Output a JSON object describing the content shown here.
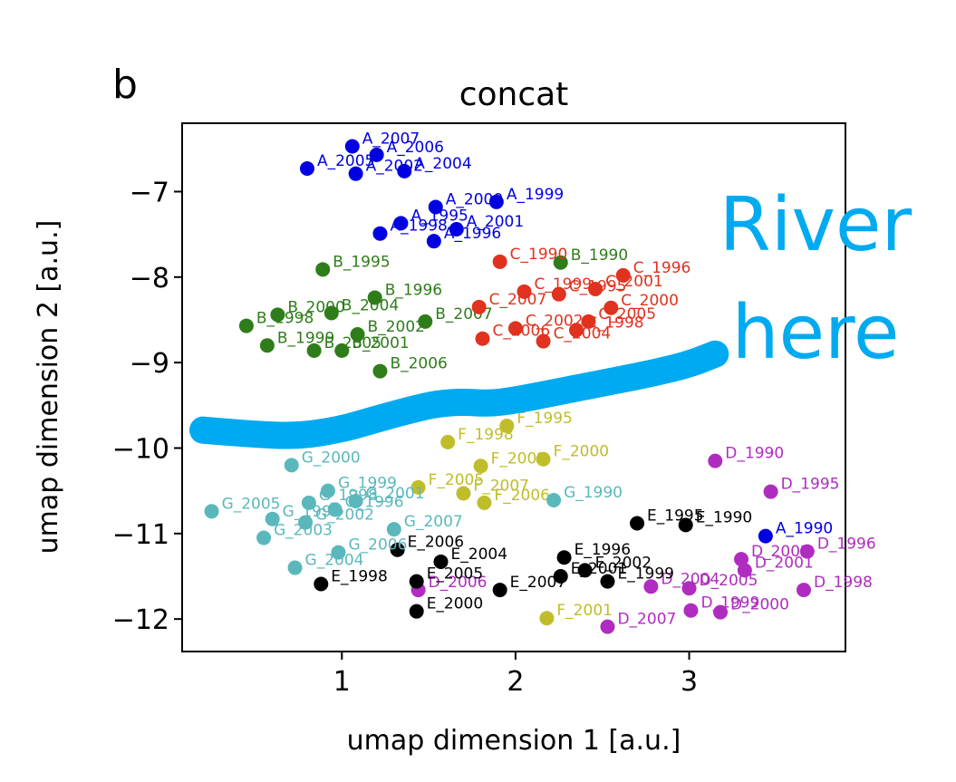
{
  "chart_data": {
    "type": "scatter",
    "panel_label": "b",
    "title": "concat",
    "xlabel": "umap dimension 1 [a.u.]",
    "ylabel": "umap dimension 2 [a.u.]",
    "xlim": [
      0.08,
      3.9
    ],
    "ylim": [
      -12.38,
      -6.2
    ],
    "xticks": [
      1,
      2,
      3
    ],
    "xtick_labels": [
      "1",
      "2",
      "3"
    ],
    "yticks": [
      -7,
      -8,
      -9,
      -10,
      -11,
      -12
    ],
    "ytick_labels": [
      "−7",
      "−8",
      "−9",
      "−10",
      "−11",
      "−12"
    ],
    "grid": false,
    "legend": "none",
    "colors": {
      "A": "#0000e0",
      "B": "#2e7d1a",
      "C": "#e0321e",
      "D": "#b02cc0",
      "E": "#000000",
      "F": "#c0bd2a",
      "G": "#5ab8bc",
      "river": "#00aaf0"
    },
    "points": [
      {
        "g": "A",
        "label": "A_2007",
        "x": 1.06,
        "y": -6.47
      },
      {
        "g": "A",
        "label": "A_2006",
        "x": 1.2,
        "y": -6.57
      },
      {
        "g": "A",
        "label": "A_2005",
        "x": 0.8,
        "y": -6.73
      },
      {
        "g": "A",
        "label": "A_2002",
        "x": 1.08,
        "y": -6.79
      },
      {
        "g": "A",
        "label": "A_2004",
        "x": 1.36,
        "y": -6.76
      },
      {
        "g": "A",
        "label": "A_2000",
        "x": 1.54,
        "y": -7.18
      },
      {
        "g": "A",
        "label": "A_1999",
        "x": 1.89,
        "y": -7.12
      },
      {
        "g": "A",
        "label": "A_1995",
        "x": 1.34,
        "y": -7.37
      },
      {
        "g": "A",
        "label": "A_1998",
        "x": 1.22,
        "y": -7.49
      },
      {
        "g": "A",
        "label": "A_2001",
        "x": 1.66,
        "y": -7.44
      },
      {
        "g": "A",
        "label": "A_1996",
        "x": 1.53,
        "y": -7.58
      },
      {
        "g": "A",
        "label": "A_1990",
        "x": 3.44,
        "y": -11.03
      },
      {
        "g": "B",
        "label": "B_1995",
        "x": 0.89,
        "y": -7.91
      },
      {
        "g": "B",
        "label": "B_1996",
        "x": 1.19,
        "y": -8.24
      },
      {
        "g": "B",
        "label": "B_2004",
        "x": 0.94,
        "y": -8.42
      },
      {
        "g": "B",
        "label": "B_2000",
        "x": 0.63,
        "y": -8.44
      },
      {
        "g": "B",
        "label": "B_1998",
        "x": 0.45,
        "y": -8.57
      },
      {
        "g": "B",
        "label": "B_2007",
        "x": 1.48,
        "y": -8.52
      },
      {
        "g": "B",
        "label": "B_2002",
        "x": 1.09,
        "y": -8.67
      },
      {
        "g": "B",
        "label": "B_1999",
        "x": 0.57,
        "y": -8.8
      },
      {
        "g": "B",
        "label": "B_2005",
        "x": 0.84,
        "y": -8.86
      },
      {
        "g": "B",
        "label": "B_2001",
        "x": 1.0,
        "y": -8.86
      },
      {
        "g": "B",
        "label": "B_2006",
        "x": 1.22,
        "y": -9.1
      },
      {
        "g": "B",
        "label": "B_1990",
        "x": 2.26,
        "y": -7.83
      },
      {
        "g": "C",
        "label": "C_1990",
        "x": 1.91,
        "y": -7.82
      },
      {
        "g": "C",
        "label": "C_1996",
        "x": 2.62,
        "y": -7.98
      },
      {
        "g": "C",
        "label": "C_2001",
        "x": 2.46,
        "y": -8.14
      },
      {
        "g": "C",
        "label": "C_1999",
        "x": 2.05,
        "y": -8.17
      },
      {
        "g": "C",
        "label": "C_1995",
        "x": 2.25,
        "y": -8.2
      },
      {
        "g": "C",
        "label": "C_2000",
        "x": 2.55,
        "y": -8.36
      },
      {
        "g": "C",
        "label": "C_2007",
        "x": 1.79,
        "y": -8.35
      },
      {
        "g": "C",
        "label": "C_2005",
        "x": 2.42,
        "y": -8.52
      },
      {
        "g": "C",
        "label": "C_1998",
        "x": 2.35,
        "y": -8.62
      },
      {
        "g": "C",
        "label": "C_2002",
        "x": 2.0,
        "y": -8.6
      },
      {
        "g": "C",
        "label": "C_2006",
        "x": 1.81,
        "y": -8.72
      },
      {
        "g": "C",
        "label": "C_2004",
        "x": 2.16,
        "y": -8.75
      },
      {
        "g": "D",
        "label": "D_1990",
        "x": 3.15,
        "y": -10.15
      },
      {
        "g": "D",
        "label": "D_1995",
        "x": 3.47,
        "y": -10.51
      },
      {
        "g": "D",
        "label": "D_2002",
        "x": 3.3,
        "y": -11.3
      },
      {
        "g": "D",
        "label": "D_1996",
        "x": 3.68,
        "y": -11.21
      },
      {
        "g": "D",
        "label": "D_2001",
        "x": 3.32,
        "y": -11.43
      },
      {
        "g": "D",
        "label": "D_2004",
        "x": 2.78,
        "y": -11.62
      },
      {
        "g": "D",
        "label": "D_2005",
        "x": 3.0,
        "y": -11.64
      },
      {
        "g": "D",
        "label": "D_1998",
        "x": 3.66,
        "y": -11.66
      },
      {
        "g": "D",
        "label": "D_2006",
        "x": 1.44,
        "y": -11.66
      },
      {
        "g": "D",
        "label": "D_1999",
        "x": 3.01,
        "y": -11.9
      },
      {
        "g": "D",
        "label": "D_2000",
        "x": 3.18,
        "y": -11.92
      },
      {
        "g": "D",
        "label": "D_2007",
        "x": 2.53,
        "y": -12.09
      },
      {
        "g": "E",
        "label": "E_1995",
        "x": 2.7,
        "y": -10.88
      },
      {
        "g": "E",
        "label": "E_1990",
        "x": 2.98,
        "y": -10.9
      },
      {
        "g": "E",
        "label": "E_2006",
        "x": 1.32,
        "y": -11.19
      },
      {
        "g": "E",
        "label": "E_2004",
        "x": 1.57,
        "y": -11.33
      },
      {
        "g": "E",
        "label": "E_1996",
        "x": 2.28,
        "y": -11.28
      },
      {
        "g": "E",
        "label": "E_2002",
        "x": 2.4,
        "y": -11.43
      },
      {
        "g": "E",
        "label": "E_2001",
        "x": 2.26,
        "y": -11.5
      },
      {
        "g": "E",
        "label": "E_1999",
        "x": 2.53,
        "y": -11.56
      },
      {
        "g": "E",
        "label": "E_1998",
        "x": 0.88,
        "y": -11.59
      },
      {
        "g": "E",
        "label": "E_2005",
        "x": 1.43,
        "y": -11.56
      },
      {
        "g": "E",
        "label": "E_2007",
        "x": 1.91,
        "y": -11.66
      },
      {
        "g": "E",
        "label": "E_2000",
        "x": 1.43,
        "y": -11.91
      },
      {
        "g": "F",
        "label": "F_1995",
        "x": 1.95,
        "y": -9.74
      },
      {
        "g": "F",
        "label": "F_1998",
        "x": 1.61,
        "y": -9.93
      },
      {
        "g": "F",
        "label": "F_2000",
        "x": 2.16,
        "y": -10.13
      },
      {
        "g": "F",
        "label": "F_2002",
        "x": 1.8,
        "y": -10.21
      },
      {
        "g": "F",
        "label": "F_2005",
        "x": 1.44,
        "y": -10.46
      },
      {
        "g": "F",
        "label": "F_2007",
        "x": 1.7,
        "y": -10.53
      },
      {
        "g": "F",
        "label": "F_2006",
        "x": 1.82,
        "y": -10.64
      },
      {
        "g": "F",
        "label": "F_2001",
        "x": 2.18,
        "y": -11.99
      },
      {
        "g": "G",
        "label": "G_2000",
        "x": 0.71,
        "y": -10.2
      },
      {
        "g": "G",
        "label": "G_1999",
        "x": 0.92,
        "y": -10.5
      },
      {
        "g": "G",
        "label": "G_2001",
        "x": 1.08,
        "y": -10.62
      },
      {
        "g": "G",
        "label": "G_2005",
        "x": 0.25,
        "y": -10.74
      },
      {
        "g": "G",
        "label": "G_1998",
        "x": 0.81,
        "y": -10.64
      },
      {
        "g": "G",
        "label": "G_1996",
        "x": 0.96,
        "y": -10.72
      },
      {
        "g": "G",
        "label": "G_1990",
        "x": 2.22,
        "y": -10.61
      },
      {
        "g": "G",
        "label": "G_1995",
        "x": 0.6,
        "y": -10.83
      },
      {
        "g": "G",
        "label": "G_2002",
        "x": 0.79,
        "y": -10.87
      },
      {
        "g": "G",
        "label": "G_2007",
        "x": 1.3,
        "y": -10.95
      },
      {
        "g": "G",
        "label": "G_2003",
        "x": 0.55,
        "y": -11.05
      },
      {
        "g": "G",
        "label": "G_2006",
        "x": 0.98,
        "y": -11.22
      },
      {
        "g": "G",
        "label": "G_2004",
        "x": 0.73,
        "y": -11.4
      }
    ],
    "annotation": {
      "lines": [
        "River",
        "here"
      ],
      "path": [
        [
          0.2,
          -9.79
        ],
        [
          0.5,
          -9.84
        ],
        [
          0.75,
          -9.86
        ],
        [
          1.0,
          -9.78
        ],
        [
          1.2,
          -9.66
        ],
        [
          1.4,
          -9.55
        ],
        [
          1.55,
          -9.48
        ],
        [
          1.7,
          -9.46
        ],
        [
          1.85,
          -9.48
        ],
        [
          2.0,
          -9.44
        ],
        [
          2.2,
          -9.36
        ],
        [
          2.4,
          -9.28
        ],
        [
          2.6,
          -9.2
        ],
        [
          2.8,
          -9.12
        ],
        [
          3.0,
          -9.02
        ],
        [
          3.15,
          -8.9
        ]
      ]
    }
  }
}
